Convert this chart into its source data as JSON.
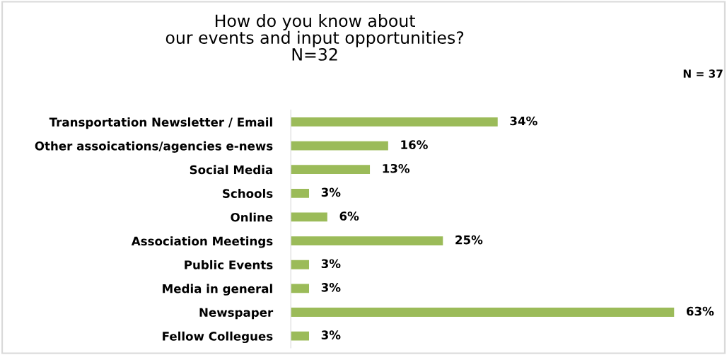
{
  "chart_data": {
    "type": "bar",
    "orientation": "horizontal",
    "title": "How do you know about\nour events and input opportunities?\nN=32",
    "categories": [
      "Transportation Newsletter / Email",
      "Other assoications/agencies e-news",
      "Social Media",
      "Schools",
      "Online",
      "Association Meetings",
      "Public Events",
      "Media in general",
      "Newspaper",
      "Fellow Collegues"
    ],
    "values": [
      34,
      16,
      13,
      3,
      6,
      25,
      3,
      3,
      63,
      3
    ],
    "value_labels": [
      "34%",
      "16%",
      "13%",
      "3%",
      "6%",
      "25%",
      "3%",
      "3%",
      "63%",
      "3%"
    ],
    "color": "#9bbb59",
    "tick_labels": "y",
    "grid": false,
    "annotations": [
      "N = 37"
    ]
  }
}
